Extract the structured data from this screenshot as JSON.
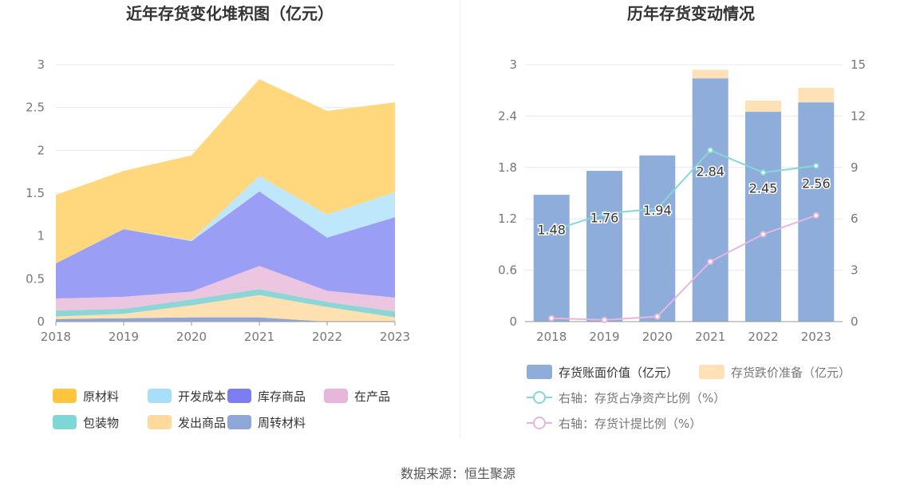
{
  "footer": "数据来源：恒生聚源",
  "chart_data": [
    {
      "type": "area",
      "stacked": true,
      "title": "近年存货变化堆积图（亿元）",
      "x": [
        "2018",
        "2019",
        "2020",
        "2021",
        "2022",
        "2023"
      ],
      "ylim": [
        0,
        3
      ],
      "yticks": [
        0,
        0.5,
        1,
        1.5,
        2,
        2.5,
        3
      ],
      "ytick_labels": [
        "0",
        "0.5",
        "1",
        "1.5",
        "2",
        "2.5",
        "3"
      ],
      "grid": true,
      "legend_position": "bottom",
      "series": [
        {
          "name": "周转材料",
          "color": "#8fa6d8",
          "values": [
            0.03,
            0.04,
            0.05,
            0.05,
            0.0,
            0.0
          ]
        },
        {
          "name": "发出商品",
          "color": "#ffe0b0",
          "values": [
            0.03,
            0.05,
            0.14,
            0.26,
            0.17,
            0.05
          ]
        },
        {
          "name": "包装物",
          "color": "#8ed6d6",
          "values": [
            0.07,
            0.06,
            0.07,
            0.07,
            0.06,
            0.07
          ]
        },
        {
          "name": "在产品",
          "color": "#ecc5e0",
          "values": [
            0.14,
            0.14,
            0.09,
            0.27,
            0.13,
            0.16
          ]
        },
        {
          "name": "库存商品",
          "color": "#9b9ef5",
          "values": [
            0.41,
            0.79,
            0.59,
            0.87,
            0.62,
            0.94
          ]
        },
        {
          "name": "开发成本",
          "color": "#bfe7fb",
          "values": [
            0.0,
            0.0,
            0.01,
            0.18,
            0.27,
            0.29
          ]
        },
        {
          "name": "原材料",
          "color": "#ffd77d",
          "values": [
            0.8,
            0.68,
            0.99,
            1.13,
            1.21,
            1.05
          ]
        }
      ],
      "legend": [
        {
          "name": "原材料",
          "color": "#ffc53d"
        },
        {
          "name": "开发成本",
          "color": "#a9def9"
        },
        {
          "name": "库存商品",
          "color": "#7b7ef2"
        },
        {
          "name": "在产品",
          "color": "#e8b6da"
        },
        {
          "name": "包装物",
          "color": "#7fd6d6"
        },
        {
          "name": "发出商品",
          "color": "#ffd89b"
        },
        {
          "name": "周转材料",
          "color": "#8fa6d8"
        }
      ]
    },
    {
      "type": "bar",
      "stacked": true,
      "title": "历年存货变动情况",
      "categories": [
        "2018",
        "2019",
        "2020",
        "2021",
        "2022",
        "2023"
      ],
      "ylim": [
        0,
        3
      ],
      "yticks": [
        0,
        0.6,
        1.2,
        1.8,
        2.4,
        3
      ],
      "ytick_labels": [
        "0",
        "0.6",
        "1.2",
        "1.8",
        "2.4",
        "3"
      ],
      "y2lim": [
        0,
        15
      ],
      "y2ticks": [
        0,
        3,
        6,
        9,
        12,
        15
      ],
      "y2tick_labels": [
        "0",
        "3",
        "6",
        "9",
        "12",
        "15"
      ],
      "grid": true,
      "legend_position": "bottom",
      "series": [
        {
          "name": "存货账面价值（亿元）",
          "color": "#8eaddb",
          "values": [
            1.48,
            1.76,
            1.94,
            2.84,
            2.45,
            2.56
          ],
          "labels": [
            "1.48",
            "1.76",
            "1.94",
            "2.84",
            "2.45",
            "2.56"
          ]
        },
        {
          "name": "存货跌价准备（亿元）",
          "color": "#ffe1b8",
          "values": [
            0.0,
            0.0,
            0.0,
            0.1,
            0.13,
            0.17
          ]
        }
      ],
      "line_series": [
        {
          "name": "右轴：存货占净资产比例（%）",
          "color": "#86d8d4",
          "values": [
            5.3,
            6.3,
            6.6,
            10.0,
            8.7,
            9.1
          ]
        },
        {
          "name": "右轴：存货计提比例（%）",
          "color": "#e8b6da",
          "values": [
            0.2,
            0.1,
            0.3,
            3.5,
            5.1,
            6.2
          ]
        }
      ]
    }
  ]
}
